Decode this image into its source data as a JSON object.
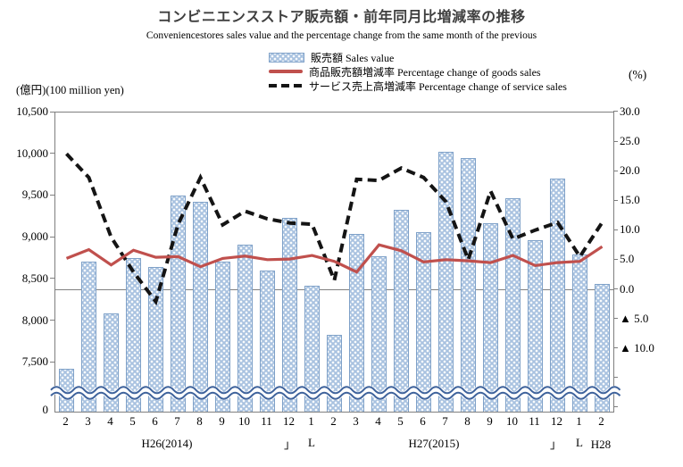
{
  "header": {
    "title": "コンビニエンスストア販売額・前年同月比増減率の推移",
    "subtitle": "Conveniencestores sales value and the percentage change from the same month of the previous"
  },
  "axis_units": {
    "left": "(億円)(100 million yen)",
    "right": "(%)"
  },
  "legend": {
    "items": [
      {
        "label": "販売額 Sales value",
        "swatch": "bar"
      },
      {
        "label": "商品販売額増減率 Percentage change of goods sales",
        "swatch": "solid-line"
      },
      {
        "label": "サービス売上高増減率 Percentage change of service sales",
        "swatch": "dashed-line"
      }
    ]
  },
  "left_axis": {
    "tick_labels": [
      "10,500",
      "10,000",
      "9,500",
      "9,000",
      "8,500",
      "8,000",
      "7,500",
      "0"
    ]
  },
  "right_axis": {
    "tick_labels": [
      "30.0",
      "25.0",
      "20.0",
      "15.0",
      "10.0",
      "5.0",
      "0.0",
      "▲ 5.0",
      "▲ 10.0"
    ]
  },
  "x_axis": {
    "months": [
      "2",
      "3",
      "4",
      "5",
      "6",
      "7",
      "8",
      "9",
      "10",
      "11",
      "12",
      "1",
      "2",
      "3",
      "4",
      "5",
      "6",
      "7",
      "8",
      "9",
      "10",
      "11",
      "12",
      "1",
      "2"
    ],
    "year_labels": [
      {
        "label": "H26(2014)"
      },
      {
        "label": "H27(2015)"
      },
      {
        "label": "H28"
      }
    ],
    "separator_close": "」",
    "separator_open": "L"
  },
  "chart_data": {
    "type": "combo-bar-line",
    "categories": [
      "2",
      "3",
      "4",
      "5",
      "6",
      "7",
      "8",
      "9",
      "10",
      "11",
      "12",
      "1",
      "2",
      "3",
      "4",
      "5",
      "6",
      "7",
      "8",
      "9",
      "10",
      "11",
      "12",
      "1",
      "2"
    ],
    "year_groups": [
      "H26(2014)",
      "H27(2015)",
      "H28"
    ],
    "series": [
      {
        "name": "販売額 Sales value",
        "type": "bar",
        "axis": "left",
        "values": [
          7430,
          8710,
          8090,
          8760,
          8650,
          9510,
          9430,
          8710,
          8920,
          8610,
          9240,
          8420,
          7840,
          9040,
          8780,
          9330,
          9070,
          10030,
          9950,
          9170,
          9470,
          8970,
          9710,
          8800,
          8450
        ]
      },
      {
        "name": "商品販売額増減率 Percentage change of goods sales",
        "type": "line",
        "line_style": "solid",
        "axis": "right",
        "values": [
          5.3,
          6.8,
          4.2,
          6.7,
          5.5,
          5.6,
          3.9,
          5.3,
          5.7,
          5.1,
          5.2,
          5.8,
          4.8,
          3.0,
          7.6,
          6.6,
          4.7,
          5.1,
          4.9,
          4.6,
          5.8,
          4.1,
          4.6,
          4.8,
          7.3
        ]
      },
      {
        "name": "サービス売上高増減率 Percentage change of service sales",
        "type": "line",
        "line_style": "dashed",
        "axis": "right",
        "values": [
          23.0,
          19.0,
          8.9,
          3.0,
          -2.0,
          11.1,
          19.0,
          11.0,
          13.3,
          12.0,
          11.3,
          11.1,
          1.6,
          18.7,
          18.5,
          20.6,
          19.0,
          14.9,
          5.1,
          16.7,
          8.6,
          10.1,
          11.4,
          5.6,
          11.4
        ]
      }
    ],
    "left_axis": {
      "label": "(億円)(100 million yen)",
      "ticks": [
        10500,
        10000,
        9500,
        9000,
        8500,
        8000,
        7500,
        0
      ],
      "break": true
    },
    "right_axis": {
      "label": "(%)",
      "ticks": [
        30,
        25,
        20,
        15,
        10,
        5,
        0,
        -5,
        -10
      ]
    },
    "grid": "zero-line-only",
    "legend_position": "top-center"
  },
  "colors": {
    "bar_fill": "#a9c2e0",
    "bar_border": "#7fa1c8",
    "goods_line": "#c0504d",
    "service_line": "#141414",
    "axis": "#7f7f7f",
    "break_wave": "#3f639c",
    "title": "#3f3f3f"
  }
}
